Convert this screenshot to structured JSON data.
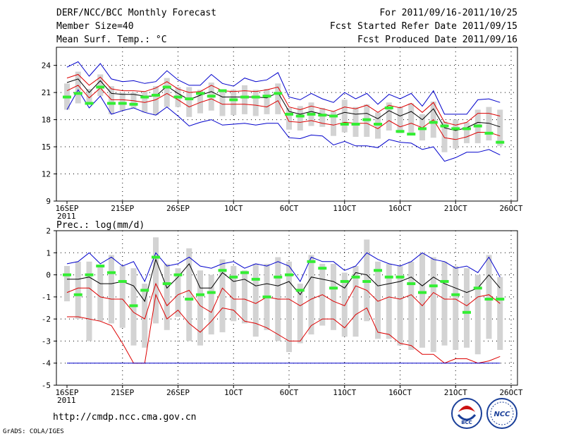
{
  "header": {
    "title": "DERF/NCC/BCC Monthly Forecast",
    "member_size": "Member Size=40",
    "variable": "Mean Surf. Temp.: °C",
    "period": "For 2011/09/16-2011/10/25",
    "started": "Fcst Started Refer Date 2011/09/15",
    "produced": "Fcst Produced Date 2011/09/16"
  },
  "footer": {
    "url": "http://cmdp.ncc.cma.gov.cn",
    "credit": "GrADS: COLA/IGES",
    "logo_left": "BCC",
    "logo_right": "NCC"
  },
  "colors": {
    "envelope": "#0000cc",
    "spread": "#dd0000",
    "mean": "#000000",
    "box": "#d3d3d3",
    "dash": "#33ee33",
    "grid": "#000000"
  },
  "chart_data": [
    {
      "type": "line",
      "subtitle": "",
      "title": "Mean Surf. Temp.: °C",
      "x_tick_labels": [
        "16SEP",
        "21SEP",
        "26SEP",
        "1OCT",
        "6OCT",
        "11OCT",
        "16OCT",
        "21OCT",
        "26OCT"
      ],
      "x_year_label": "2011",
      "ylim": [
        9,
        26
      ],
      "y_ticks": [
        9,
        12,
        15,
        18,
        21,
        24
      ],
      "days": 40,
      "series": [
        {
          "name": "max",
          "values": [
            23.8,
            24.4,
            22.8,
            24.2,
            22.5,
            22.2,
            22.3,
            22.0,
            22.2,
            23.4,
            22.4,
            21.8,
            21.8,
            23.0,
            22.0,
            21.7,
            22.6,
            22.2,
            22.4,
            23.2,
            20.5,
            20.2,
            20.9,
            20.3,
            19.9,
            21.0,
            20.3,
            20.9,
            19.7,
            20.8,
            20.3,
            20.9,
            19.5,
            21.2,
            18.6,
            18.6,
            18.6,
            20.2,
            20.3,
            19.9
          ]
        },
        {
          "name": "p75",
          "values": [
            22.6,
            23.0,
            21.8,
            22.7,
            21.4,
            21.2,
            21.2,
            21.1,
            21.5,
            22.2,
            21.4,
            21.0,
            21.1,
            21.8,
            21.2,
            21.1,
            21.2,
            21.1,
            21.3,
            21.6,
            19.4,
            19.1,
            19.5,
            19.2,
            18.9,
            19.4,
            19.2,
            19.6,
            18.8,
            19.6,
            19.3,
            19.8,
            18.8,
            19.9,
            17.7,
            17.4,
            17.7,
            18.7,
            18.7,
            18.4
          ]
        },
        {
          "name": "mean",
          "values": [
            22.1,
            22.5,
            21.0,
            22.3,
            20.9,
            20.8,
            20.8,
            20.6,
            20.6,
            21.7,
            20.9,
            20.2,
            20.7,
            21.1,
            20.5,
            20.5,
            20.5,
            20.5,
            20.4,
            21.0,
            18.9,
            18.6,
            18.9,
            18.6,
            18.4,
            18.8,
            18.6,
            18.7,
            18.1,
            19.0,
            18.4,
            18.9,
            18.0,
            19.2,
            17.1,
            16.8,
            17.1,
            17.7,
            17.6,
            17.2
          ]
        },
        {
          "name": "p25",
          "values": [
            21.2,
            21.8,
            20.4,
            21.5,
            20.2,
            20.2,
            20.1,
            19.9,
            20.2,
            20.9,
            20.2,
            19.4,
            19.9,
            20.3,
            19.7,
            19.7,
            19.7,
            19.6,
            19.4,
            20.1,
            17.8,
            17.7,
            17.9,
            17.6,
            17.4,
            17.7,
            17.6,
            17.6,
            17.0,
            17.9,
            17.2,
            17.6,
            17.1,
            18.0,
            16.0,
            15.8,
            16.1,
            16.6,
            16.6,
            16.2
          ]
        },
        {
          "name": "min",
          "values": [
            19.1,
            21.3,
            19.3,
            20.6,
            18.6,
            19.0,
            19.3,
            18.8,
            18.5,
            19.4,
            18.4,
            17.3,
            17.7,
            18.0,
            17.4,
            17.5,
            17.6,
            17.4,
            17.6,
            17.6,
            16.0,
            15.9,
            16.3,
            16.2,
            15.2,
            15.6,
            15.1,
            15.1,
            14.9,
            15.8,
            15.5,
            15.4,
            14.7,
            15.0,
            13.4,
            13.8,
            14.4,
            14.4,
            14.7,
            14.1
          ]
        }
      ],
      "boxes_low": [
        19.1,
        19.8,
        19.7,
        20.6,
        18.6,
        19.0,
        19.3,
        18.8,
        18.5,
        19.4,
        19.4,
        18.3,
        18.7,
        19.0,
        18.4,
        18.5,
        18.6,
        18.4,
        18.6,
        18.6,
        16.9,
        16.8,
        17.3,
        17.2,
        16.2,
        16.6,
        16.1,
        16.1,
        15.9,
        16.8,
        16.5,
        16.4,
        15.7,
        16.0,
        14.4,
        14.8,
        15.4,
        15.4,
        15.7,
        15.1
      ],
      "boxes_high": [
        22.0,
        23.3,
        21.4,
        23.0,
        21.7,
        21.0,
        21.0,
        21.1,
        21.7,
        22.6,
        21.6,
        21.6,
        21.3,
        22.1,
        21.3,
        21.3,
        21.8,
        21.3,
        21.4,
        22.0,
        19.3,
        19.5,
        19.9,
        19.3,
        18.9,
        20.2,
        19.4,
        19.7,
        18.8,
        19.9,
        19.4,
        19.8,
        18.6,
        20.0,
        17.8,
        18.0,
        17.7,
        19.1,
        19.4,
        19.1
      ],
      "dash_values": [
        20.5,
        20.9,
        19.8,
        21.6,
        19.8,
        19.8,
        19.7,
        20.5,
        20.7,
        21.6,
        20.5,
        20.3,
        20.9,
        20.6,
        21.2,
        20.2,
        20.5,
        20.5,
        20.6,
        20.9,
        18.6,
        18.4,
        18.6,
        18.5,
        18.4,
        17.5,
        17.5,
        18.0,
        17.5,
        19.3,
        16.7,
        16.4,
        17.0,
        17.7,
        17.3,
        17.0,
        17.0,
        17.3,
        16.5,
        15.5
      ]
    },
    {
      "type": "line",
      "title": "Prec.: log(mm/d)",
      "x_tick_labels": [
        "16SEP",
        "21SEP",
        "26SEP",
        "1OCT",
        "6OCT",
        "11OCT",
        "16OCT",
        "21OCT",
        "26OCT"
      ],
      "x_year_label": "2011",
      "ylim": [
        -5,
        2
      ],
      "y_ticks": [
        -5,
        -4,
        -3,
        -2,
        -1,
        0,
        1,
        2
      ],
      "days": 40,
      "series": [
        {
          "name": "max",
          "values": [
            0.5,
            0.6,
            1.0,
            0.5,
            0.8,
            0.4,
            0.6,
            -0.3,
            1.0,
            0.4,
            0.5,
            0.8,
            0.4,
            0.3,
            0.5,
            0.6,
            0.3,
            0.5,
            0.4,
            0.6,
            0.4,
            -0.3,
            0.8,
            0.6,
            0.6,
            0.2,
            0.4,
            1.0,
            0.7,
            0.5,
            0.4,
            0.6,
            1.0,
            0.7,
            0.6,
            0.3,
            0.4,
            0.1,
            0.8,
            -0.1
          ]
        },
        {
          "name": "mean",
          "values": [
            -0.2,
            -0.2,
            -0.1,
            -0.4,
            -0.4,
            -0.3,
            -0.5,
            -1.2,
            0.7,
            -0.6,
            -0.1,
            0.5,
            -0.6,
            -0.6,
            0.1,
            -0.3,
            -0.2,
            -0.5,
            -0.4,
            -0.5,
            -0.3,
            -0.9,
            -0.1,
            -0.2,
            -0.3,
            -0.6,
            0.1,
            0.0,
            -0.5,
            -0.4,
            -0.3,
            -0.1,
            -0.5,
            -0.1,
            -0.4,
            -0.6,
            -0.8,
            -0.6,
            0.0,
            -0.6
          ]
        },
        {
          "name": "p25",
          "values": [
            -0.8,
            -0.6,
            -0.6,
            -1.0,
            -1.1,
            -1.1,
            -1.7,
            -2.0,
            -0.4,
            -1.4,
            -0.9,
            -0.7,
            -1.4,
            -1.7,
            -0.6,
            -1.1,
            -1.1,
            -1.3,
            -1.0,
            -1.1,
            -1.1,
            -1.4,
            -1.1,
            -0.9,
            -1.2,
            -1.4,
            -0.5,
            -0.7,
            -1.2,
            -1.0,
            -1.1,
            -0.9,
            -1.4,
            -0.8,
            -1.1,
            -1.1,
            -1.4,
            -1.0,
            -0.9,
            -1.3
          ]
        },
        {
          "name": "p10",
          "values": [
            -1.9,
            -1.9,
            -2.0,
            -2.1,
            -2.3,
            -3.1,
            -4.0,
            -4.0,
            -0.9,
            -2.0,
            -1.6,
            -2.2,
            -2.6,
            -2.1,
            -1.5,
            -1.6,
            -2.1,
            -2.2,
            -2.4,
            -2.7,
            -3.0,
            -3.0,
            -2.3,
            -2.0,
            -2.0,
            -2.4,
            -1.8,
            -1.5,
            -2.6,
            -2.7,
            -3.1,
            -3.2,
            -3.6,
            -3.6,
            -4.0,
            -3.8,
            -3.8,
            -4.0,
            -3.9,
            -3.7
          ]
        },
        {
          "name": "min",
          "values": [
            -4,
            -4,
            -4,
            -4,
            -4,
            -4,
            -4,
            -4,
            -4,
            -4,
            -4,
            -4,
            -4,
            -4,
            -4,
            -4,
            -4,
            -4,
            -4,
            -4,
            -4,
            -4,
            -4,
            -4,
            -4,
            -4,
            -4,
            -4,
            -4,
            -4,
            -4,
            -4,
            -4,
            -4,
            -4,
            -4,
            -4,
            -4,
            -4,
            -4
          ]
        }
      ],
      "boxes_low": [
        -1.2,
        -2.0,
        -3.0,
        -2.1,
        -2.2,
        -2.4,
        -3.2,
        -3.3,
        -2.2,
        -2.5,
        -1.9,
        -3.0,
        -3.2,
        -2.7,
        -2.6,
        -2.1,
        -2.2,
        -2.8,
        -2.5,
        -3.0,
        -3.5,
        -3.1,
        -2.7,
        -2.3,
        -2.5,
        -2.8,
        -2.8,
        -2.1,
        -2.9,
        -2.9,
        -3.2,
        -3.4,
        -3.3,
        -3.5,
        -3.2,
        -3.4,
        -3.3,
        -3.6,
        -2.9,
        -3.4
      ],
      "boxes_high": [
        0.4,
        0.6,
        0.6,
        0.4,
        0.9,
        0.4,
        0.3,
        -0.4,
        1.7,
        0.5,
        0.3,
        1.2,
        0.2,
        0.0,
        0.7,
        0.4,
        0.2,
        0.5,
        0.5,
        0.8,
        0.6,
        -0.4,
        0.9,
        0.5,
        0.5,
        0.1,
        0.4,
        1.6,
        0.6,
        0.5,
        0.4,
        0.6,
        1.0,
        0.8,
        0.6,
        0.4,
        0.3,
        0.0,
        0.9,
        -0.1
      ],
      "dash_values": [
        0.0,
        -0.9,
        0.0,
        0.4,
        0.1,
        -0.3,
        -1.4,
        -0.7,
        0.8,
        -0.4,
        0.0,
        -1.1,
        -0.9,
        -0.8,
        0.2,
        -0.1,
        0.1,
        -0.2,
        -1.0,
        -0.1,
        0.0,
        -0.7,
        0.6,
        0.3,
        -0.6,
        -0.3,
        -0.1,
        -0.3,
        0.2,
        -0.1,
        -0.1,
        -0.4,
        -0.8,
        -0.5,
        -0.3,
        -0.9,
        -1.7,
        -0.6,
        -1.1,
        -1.1
      ]
    }
  ]
}
